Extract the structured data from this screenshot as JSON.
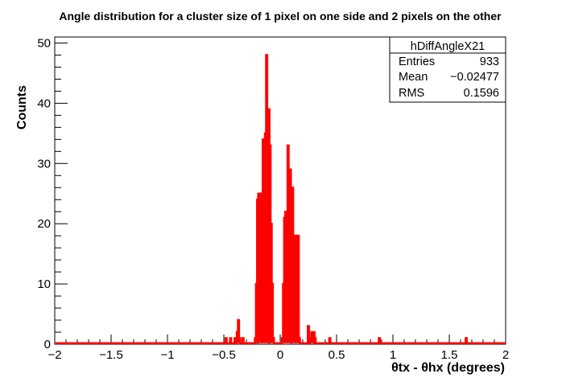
{
  "chart_data": {
    "type": "histogram",
    "title": "Angle distribution for a cluster size of 1 pixel on one side and 2 pixels on the other",
    "xlabel": "θtx - θhx (degrees)",
    "ylabel": "Counts",
    "xlim": [
      -2,
      2
    ],
    "ylim": [
      0,
      51
    ],
    "x_ticks": [
      -2,
      -1.5,
      -1,
      -0.5,
      0,
      0.5,
      1,
      1.5,
      2
    ],
    "x_tick_labels": [
      "−2",
      "−1.5",
      "−1",
      "−0.5",
      "0",
      "0.5",
      "1",
      "1.5",
      "2"
    ],
    "y_ticks": [
      0,
      10,
      20,
      30,
      40,
      50
    ],
    "y_tick_labels": [
      "0",
      "10",
      "20",
      "30",
      "40",
      "50"
    ],
    "bin_width": 0.01,
    "color": "#ff0000",
    "bins": [
      {
        "x": -0.48,
        "y": 1
      },
      {
        "x": -0.44,
        "y": 1
      },
      {
        "x": -0.4,
        "y": 1
      },
      {
        "x": -0.38,
        "y": 2
      },
      {
        "x": -0.37,
        "y": 4
      },
      {
        "x": -0.36,
        "y": 1
      },
      {
        "x": -0.33,
        "y": 1
      },
      {
        "x": -0.22,
        "y": 1
      },
      {
        "x": -0.21,
        "y": 10
      },
      {
        "x": -0.2,
        "y": 24
      },
      {
        "x": -0.19,
        "y": 25
      },
      {
        "x": -0.18,
        "y": 20
      },
      {
        "x": -0.17,
        "y": 25
      },
      {
        "x": -0.16,
        "y": 22
      },
      {
        "x": -0.15,
        "y": 34
      },
      {
        "x": -0.14,
        "y": 21
      },
      {
        "x": -0.13,
        "y": 35
      },
      {
        "x": -0.12,
        "y": 48
      },
      {
        "x": -0.11,
        "y": 30
      },
      {
        "x": -0.1,
        "y": 39
      },
      {
        "x": -0.09,
        "y": 33
      },
      {
        "x": -0.08,
        "y": 20
      },
      {
        "x": -0.07,
        "y": 10
      },
      {
        "x": -0.06,
        "y": 1
      },
      {
        "x": 0.02,
        "y": 1
      },
      {
        "x": 0.03,
        "y": 10
      },
      {
        "x": 0.04,
        "y": 21
      },
      {
        "x": 0.05,
        "y": 22
      },
      {
        "x": 0.06,
        "y": 17
      },
      {
        "x": 0.07,
        "y": 33
      },
      {
        "x": 0.08,
        "y": 18
      },
      {
        "x": 0.09,
        "y": 29
      },
      {
        "x": 0.1,
        "y": 16
      },
      {
        "x": 0.11,
        "y": 26
      },
      {
        "x": 0.12,
        "y": 16
      },
      {
        "x": 0.13,
        "y": 18
      },
      {
        "x": 0.14,
        "y": 18
      },
      {
        "x": 0.15,
        "y": 10
      },
      {
        "x": 0.16,
        "y": 18
      },
      {
        "x": 0.17,
        "y": 1
      },
      {
        "x": 0.25,
        "y": 3
      },
      {
        "x": 0.27,
        "y": 1
      },
      {
        "x": 0.28,
        "y": 2
      },
      {
        "x": 0.29,
        "y": 1
      },
      {
        "x": 0.3,
        "y": 2
      },
      {
        "x": 0.31,
        "y": 1
      },
      {
        "x": 0.44,
        "y": 1
      },
      {
        "x": 0.88,
        "y": 1
      },
      {
        "x": 1.65,
        "y": 1
      }
    ],
    "stats_box": {
      "name": "hDiffAngleX21",
      "rows": [
        {
          "label": "Entries",
          "value": "933"
        },
        {
          "label": "Mean",
          "value": "−0.02477"
        },
        {
          "label": "RMS",
          "value": "0.1596"
        }
      ]
    }
  }
}
